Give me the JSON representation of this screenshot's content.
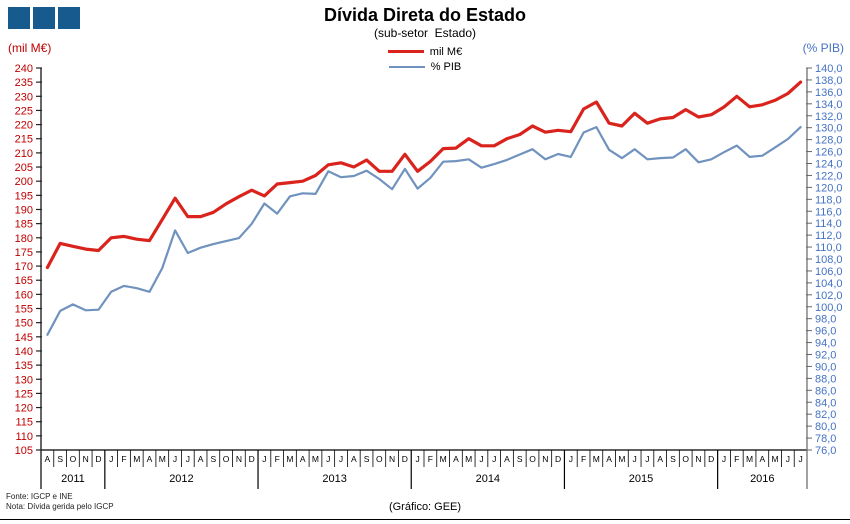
{
  "title": "Dívida Direta do Estado",
  "subtitle": "(sub-setor  Estado)",
  "legend": {
    "items": [
      {
        "label": "mil M€",
        "color": "#D9231C",
        "thickness": 3.2
      },
      {
        "label": "% PIB",
        "color": "#7092BE",
        "thickness": 2.2
      }
    ]
  },
  "left_axis": {
    "title": "(mil M€)",
    "color": "#C00000",
    "min": 105,
    "max": 240,
    "step": 5
  },
  "right_axis": {
    "title": "(% PIB)",
    "color": "#4472C4",
    "min": 76,
    "max": 140,
    "step": 2
  },
  "footer": {
    "source": "Fonte: IGCP e INE",
    "note": "Nota: Dívida  gerida  pelo  IGCP",
    "credit": "(Gráfico: GEE)"
  },
  "chart_data": {
    "type": "line",
    "title": "Dívida Direta do Estado (sub-setor Estado)",
    "x_unit": "month",
    "grid": false,
    "legend_position": "top",
    "left_axis_range": [
      105,
      240
    ],
    "right_axis_range": [
      76,
      140
    ],
    "months": [
      "A",
      "S",
      "O",
      "N",
      "D",
      "J",
      "F",
      "M",
      "A",
      "M",
      "J",
      "J",
      "A",
      "S",
      "O",
      "N",
      "D",
      "J",
      "F",
      "M",
      "A",
      "M",
      "J",
      "J",
      "A",
      "S",
      "O",
      "N",
      "D",
      "J",
      "F",
      "M",
      "A",
      "M",
      "J",
      "J",
      "A",
      "S",
      "O",
      "N",
      "D",
      "J",
      "F",
      "M",
      "A",
      "M",
      "J",
      "J",
      "A",
      "S",
      "O",
      "N",
      "D",
      "J",
      "F",
      "M",
      "A",
      "M",
      "J",
      "J"
    ],
    "year_groups": [
      {
        "label": "2011",
        "count": 5
      },
      {
        "label": "2012",
        "count": 12
      },
      {
        "label": "2013",
        "count": 12
      },
      {
        "label": "2014",
        "count": 12
      },
      {
        "label": "2015",
        "count": 12
      },
      {
        "label": "2016",
        "count": 7
      }
    ],
    "series": [
      {
        "name": "mil M€",
        "axis": "left",
        "color": "#D9231C",
        "width": 3.2,
        "values": [
          169.5,
          178,
          177,
          176,
          175.5,
          180,
          180.5,
          179.5,
          179,
          186.5,
          194,
          187.5,
          187.5,
          189,
          192,
          194.5,
          196.8,
          194.8,
          199,
          199.5,
          200,
          202,
          205.8,
          206.5,
          205,
          207.5,
          203.5,
          203.5,
          209.5,
          203.5,
          207,
          211.5,
          211.7,
          215,
          212.5,
          212.5,
          215,
          216.5,
          219.5,
          217.3,
          218,
          217.5,
          225.5,
          228,
          220.5,
          219.5,
          224,
          220.5,
          222,
          222.5,
          225.3,
          222.7,
          223.5,
          226.2,
          230,
          226.3,
          227,
          228.6,
          231,
          235
        ]
      },
      {
        "name": "% PIB",
        "axis": "right",
        "color": "#7092BE",
        "width": 2.2,
        "values": [
          95.3,
          99.3,
          100.4,
          99.4,
          99.5,
          102.5,
          103.5,
          103.1,
          102.5,
          106.5,
          112.8,
          109,
          109.9,
          110.5,
          111,
          111.5,
          113.9,
          117.3,
          115.6,
          118.5,
          119,
          118.9,
          122.7,
          121.7,
          121.9,
          122.8,
          121.4,
          119.7,
          123.1,
          119.8,
          121.6,
          124.3,
          124.4,
          124.7,
          123.3,
          123.9,
          124.6,
          125.5,
          126.4,
          124.7,
          125.6,
          125.1,
          129.2,
          130.1,
          126.3,
          124.9,
          126.4,
          124.7,
          124.9,
          125,
          126.4,
          124.2,
          124.7,
          125.9,
          127,
          125.1,
          125.3,
          126.7,
          128.1,
          130.1
        ]
      }
    ]
  }
}
